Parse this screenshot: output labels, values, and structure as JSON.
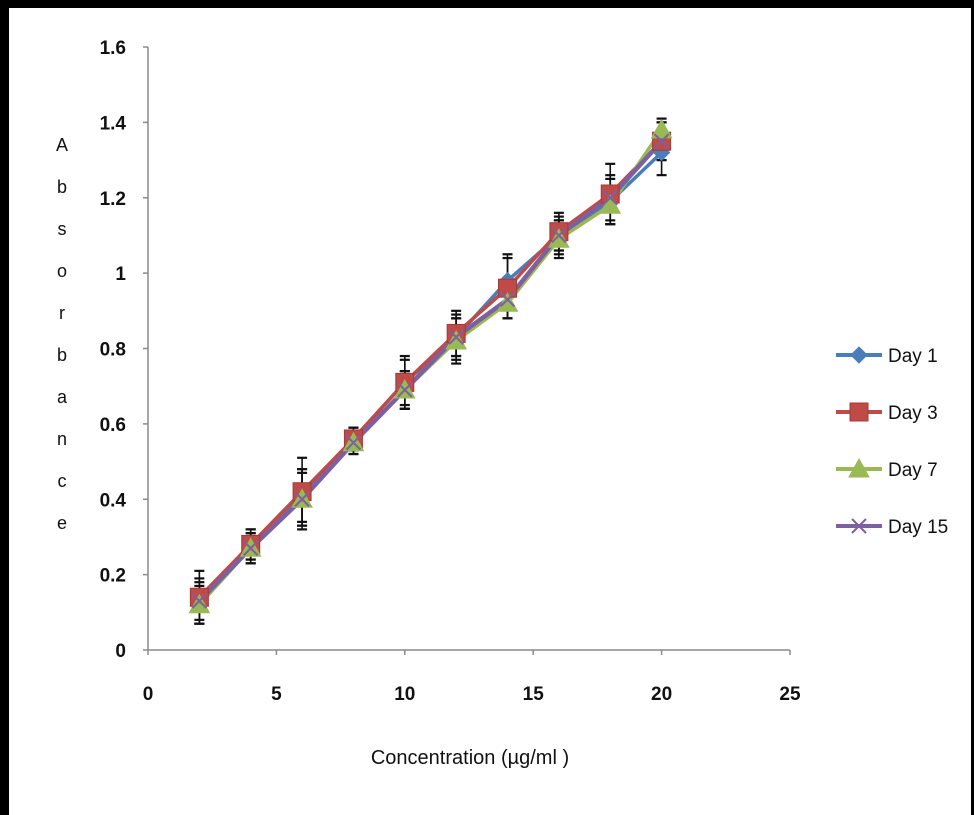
{
  "chart_data": {
    "type": "line",
    "title": "",
    "xlabel": "Concentration (µg/ml )",
    "ylabel": "Absorbance",
    "xlim": [
      0,
      25
    ],
    "ylim": [
      0,
      1.6
    ],
    "x_ticks": [
      0,
      5,
      10,
      15,
      20,
      25
    ],
    "y_ticks": [
      0,
      0.2,
      0.4,
      0.6,
      0.8,
      1,
      1.2,
      1.4,
      1.6
    ],
    "y_tick_labels": [
      "0",
      "0.2",
      "0.4",
      "0.6",
      "0.8",
      "1",
      "1.2",
      "1.4",
      "1.6"
    ],
    "grid": false,
    "legend_position": "right",
    "x": [
      2,
      4,
      6,
      8,
      10,
      12,
      14,
      16,
      18,
      20
    ],
    "series": [
      {
        "name": "Day 1",
        "color": "#4a7ebb",
        "marker": "diamond",
        "values": [
          0.13,
          0.28,
          0.41,
          0.56,
          0.71,
          0.83,
          0.98,
          1.1,
          1.19,
          1.32
        ],
        "errors": [
          0.06,
          0.04,
          0.07,
          0.03,
          0.06,
          0.06,
          0.07,
          0.05,
          0.06,
          0.06
        ]
      },
      {
        "name": "Day 3",
        "color": "#be4b48",
        "marker": "square",
        "values": [
          0.14,
          0.28,
          0.42,
          0.56,
          0.71,
          0.84,
          0.96,
          1.11,
          1.21,
          1.35
        ],
        "errors": [
          0.07,
          0.04,
          0.09,
          0.03,
          0.07,
          0.06,
          0.08,
          0.05,
          0.08,
          0.05
        ]
      },
      {
        "name": "Day 7",
        "color": "#98b954",
        "marker": "triangle",
        "values": [
          0.12,
          0.27,
          0.4,
          0.55,
          0.69,
          0.82,
          0.92,
          1.09,
          1.18,
          1.38
        ],
        "errors": [
          0.05,
          0.04,
          0.08,
          0.03,
          0.05,
          0.06,
          0.04,
          0.05,
          0.05,
          0.03
        ]
      },
      {
        "name": "Day 15",
        "color": "#7d60a0",
        "marker": "x",
        "values": [
          0.13,
          0.27,
          0.4,
          0.55,
          0.69,
          0.83,
          0.93,
          1.1,
          1.2,
          1.35
        ],
        "errors": [
          0.05,
          0.04,
          0.07,
          0.03,
          0.05,
          0.05,
          0.05,
          0.04,
          0.06,
          0.05
        ]
      }
    ]
  }
}
